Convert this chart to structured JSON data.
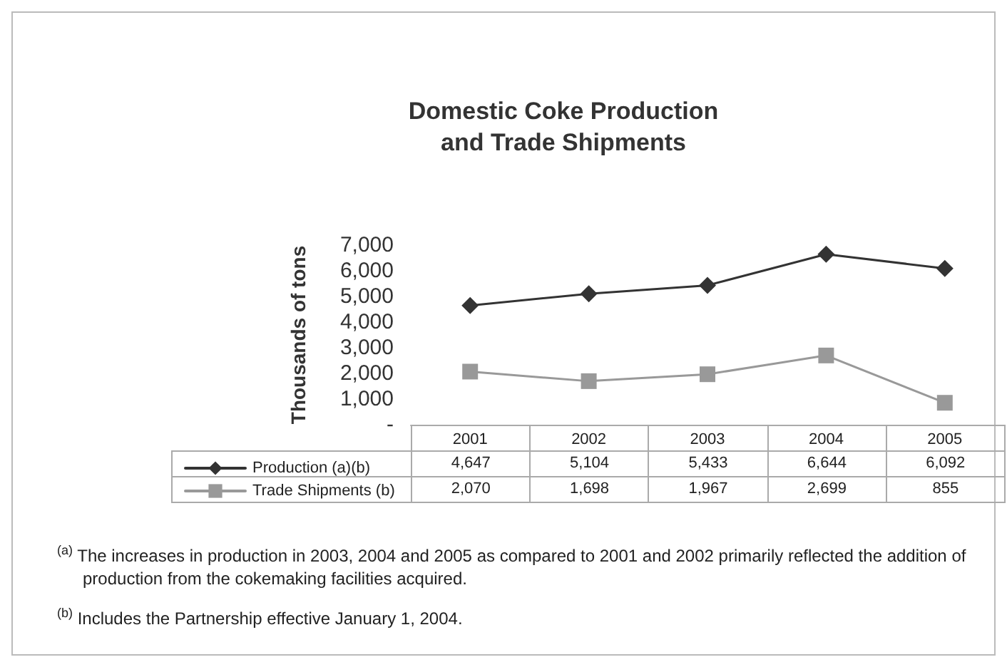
{
  "chart_data": {
    "type": "line",
    "title": "Domestic Coke Production\nand Trade Shipments",
    "ylabel": "Thousands of tons",
    "categories": [
      "2001",
      "2002",
      "2003",
      "2004",
      "2005"
    ],
    "series": [
      {
        "name": "Production (a)(b)",
        "color": "#333333",
        "marker": "diamond",
        "values": [
          4647,
          5104,
          5433,
          6644,
          6092
        ],
        "value_labels": [
          "4,647",
          "5,104",
          "5,433",
          "6,644",
          "6,092"
        ]
      },
      {
        "name": "Trade Shipments (b)",
        "color": "#999999",
        "marker": "square",
        "values": [
          2070,
          1698,
          1967,
          2699,
          855
        ],
        "value_labels": [
          "2,070",
          "1,698",
          "1,967",
          "2,699",
          "855"
        ]
      }
    ],
    "ylim": [
      0,
      7000
    ],
    "yticks": [
      {
        "value": 0,
        "label": "-"
      },
      {
        "value": 1000,
        "label": "1,000"
      },
      {
        "value": 2000,
        "label": "2,000"
      },
      {
        "value": 3000,
        "label": "3,000"
      },
      {
        "value": 4000,
        "label": "4,000"
      },
      {
        "value": 5000,
        "label": "5,000"
      },
      {
        "value": 6000,
        "label": "6,000"
      },
      {
        "value": 7000,
        "label": "7,000"
      }
    ],
    "grid": false,
    "legend": "bottom left",
    "annotations": [
      "$^{(a)}$ The increases in production in 2003, 2004 and 2005 as compared to 2001 and 2002 primarily reflected the addition of production from the cokemaking facilities acquired.",
      "$^{(b)}$ Includes the Partnership effective January 1, 2004."
    ]
  }
}
